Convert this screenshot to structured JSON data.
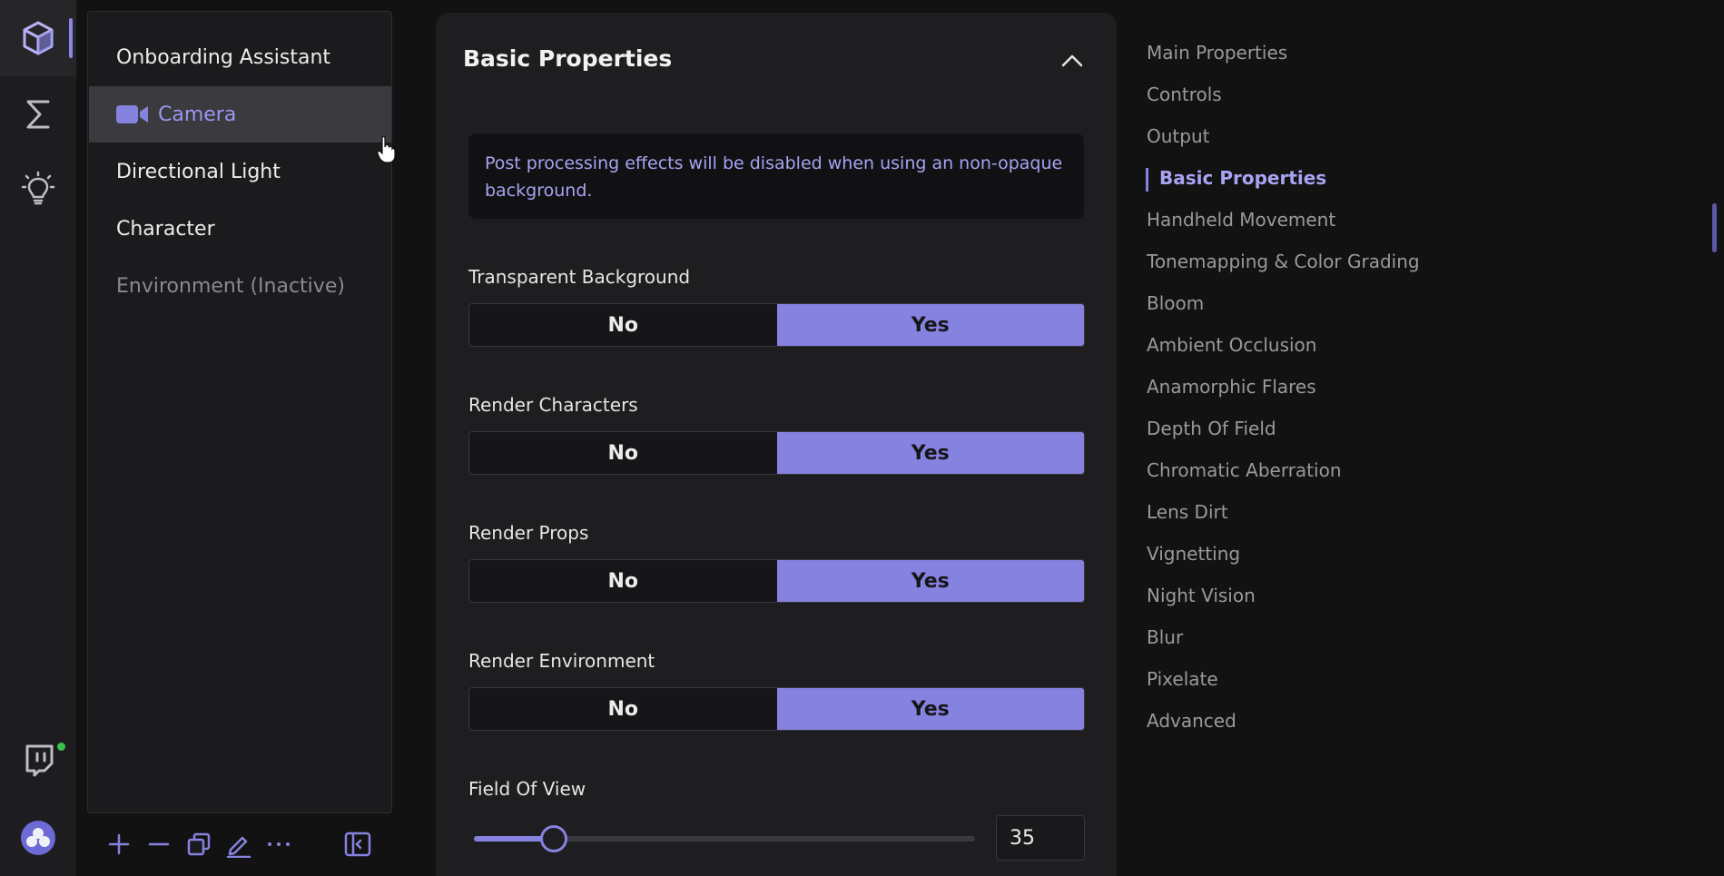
{
  "rail": {
    "items": [
      {
        "icon": "cube-icon",
        "active": true
      },
      {
        "icon": "sigma-icon",
        "active": false
      },
      {
        "icon": "lightbulb-icon",
        "active": false
      },
      {
        "icon": "twitch-icon",
        "active": false
      },
      {
        "icon": "avatar-icon",
        "active": false
      }
    ],
    "status_color": "#3ac24a"
  },
  "scene_list": {
    "items": [
      {
        "label": "Onboarding Assistant",
        "state": "normal"
      },
      {
        "label": "Camera",
        "state": "selected"
      },
      {
        "label": "Directional Light",
        "state": "normal"
      },
      {
        "label": "Character",
        "state": "normal"
      },
      {
        "label": "Environment (Inactive)",
        "state": "inactive"
      }
    ],
    "tools": [
      "plus-icon",
      "minus-icon",
      "duplicate-icon",
      "edit-icon",
      "more-icon",
      "collapse-panel-icon"
    ]
  },
  "properties": {
    "title": "Basic Properties",
    "notice": "Post processing effects will be disabled when using an non-opaque background.",
    "toggles": [
      {
        "label": "Transparent Background",
        "no": "No",
        "yes": "Yes",
        "value": "Yes"
      },
      {
        "label": "Render Characters",
        "no": "No",
        "yes": "Yes",
        "value": "Yes"
      },
      {
        "label": "Render Props",
        "no": "No",
        "yes": "Yes",
        "value": "Yes"
      },
      {
        "label": "Render Environment",
        "no": "No",
        "yes": "Yes",
        "value": "Yes"
      }
    ],
    "field_of_view": {
      "label": "Field Of View",
      "value": "35",
      "slider_fraction": 0.16
    }
  },
  "toc": {
    "items": [
      "Main Properties",
      "Controls",
      "Output",
      "Basic Properties",
      "Handheld Movement",
      "Tonemapping & Color Grading",
      "Bloom",
      "Ambient Occlusion",
      "Anamorphic Flares",
      "Depth Of Field",
      "Chromatic Aberration",
      "Lens Dirt",
      "Vignetting",
      "Night Vision",
      "Blur",
      "Pixelate",
      "Advanced"
    ],
    "active_index": 3
  },
  "colors": {
    "accent": "#8682e0",
    "background": "#121212",
    "panel": "#1e1e20"
  }
}
